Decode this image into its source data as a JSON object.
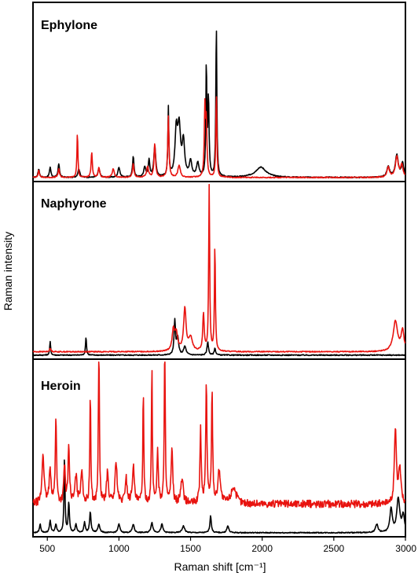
{
  "chart_data": {
    "type": "line",
    "xlabel": "Raman shift [cm⁻¹]",
    "ylabel": "Raman intensity",
    "xlim": [
      400,
      3000
    ],
    "xticks": [
      "500",
      "1000",
      "1500",
      "2000",
      "2500",
      "3000"
    ],
    "xtick_values": [
      500,
      1000,
      1500,
      2000,
      2500,
      3000
    ],
    "series_colors": [
      "#000000",
      "#e8130f"
    ],
    "grid": false,
    "panels": [
      {
        "title": "Ephylone",
        "ylim": [
          0,
          1
        ],
        "series": [
          {
            "color": "#000000",
            "baseline": 0.01,
            "peaks": [
              [
                440,
                0.05,
                6
              ],
              [
                520,
                0.06,
                6
              ],
              [
                580,
                0.08,
                6
              ],
              [
                720,
                0.05,
                8
              ],
              [
                860,
                0.05,
                8
              ],
              [
                1000,
                0.06,
                8
              ],
              [
                1100,
                0.12,
                6
              ],
              [
                1180,
                0.06,
                8
              ],
              [
                1210,
                0.1,
                6
              ],
              [
                1250,
                0.18,
                8
              ],
              [
                1345,
                0.4,
                4
              ],
              [
                1400,
                0.25,
                10
              ],
              [
                1420,
                0.28,
                12
              ],
              [
                1450,
                0.2,
                10
              ],
              [
                1500,
                0.09,
                10
              ],
              [
                1550,
                0.08,
                10
              ],
              [
                1610,
                0.65,
                4
              ],
              [
                1625,
                0.45,
                5
              ],
              [
                1680,
                0.9,
                4
              ],
              [
                1990,
                0.06,
                45
              ],
              [
                2880,
                0.06,
                12
              ],
              [
                2940,
                0.13,
                12
              ],
              [
                2980,
                0.08,
                10
              ]
            ]
          },
          {
            "color": "#e8130f",
            "baseline": 0.01,
            "peaks": [
              [
                440,
                0.04,
                6
              ],
              [
                580,
                0.05,
                6
              ],
              [
                710,
                0.26,
                4
              ],
              [
                810,
                0.15,
                5
              ],
              [
                860,
                0.06,
                6
              ],
              [
                960,
                0.05,
                8
              ],
              [
                1100,
                0.08,
                6
              ],
              [
                1200,
                0.06,
                8
              ],
              [
                1250,
                0.2,
                6
              ],
              [
                1345,
                0.36,
                5
              ],
              [
                1420,
                0.07,
                10
              ],
              [
                1600,
                0.4,
                5
              ],
              [
                1610,
                0.3,
                5
              ],
              [
                1680,
                0.5,
                4
              ],
              [
                2880,
                0.06,
                10
              ],
              [
                2940,
                0.12,
                12
              ],
              [
                2975,
                0.07,
                10
              ]
            ]
          }
        ]
      },
      {
        "title": "Naphyrone",
        "ylim": [
          0,
          1
        ],
        "series": [
          {
            "color": "#000000",
            "baseline": 0.01,
            "peaks": [
              [
                520,
                0.08,
                4
              ],
              [
                770,
                0.11,
                4
              ],
              [
                1390,
                0.2,
                6
              ],
              [
                1410,
                0.1,
                8
              ],
              [
                1460,
                0.05,
                10
              ],
              [
                1620,
                0.08,
                6
              ],
              [
                1670,
                0.04,
                6
              ]
            ]
          },
          {
            "color": "#e8130f",
            "baseline": 0.03,
            "peaks": [
              [
                520,
                0.02,
                6
              ],
              [
                1380,
                0.12,
                10
              ],
              [
                1400,
                0.1,
                12
              ],
              [
                1460,
                0.25,
                10
              ],
              [
                1500,
                0.08,
                15
              ],
              [
                1590,
                0.22,
                6
              ],
              [
                1630,
                1.0,
                4
              ],
              [
                1670,
                0.63,
                4
              ],
              [
                2930,
                0.18,
                18
              ],
              [
                2980,
                0.12,
                12
              ]
            ]
          }
        ]
      },
      {
        "title": "Heroin",
        "ylim": [
          0,
          1
        ],
        "series": [
          {
            "color": "#000000",
            "baseline": 0.01,
            "peaks": [
              [
                450,
                0.05,
                6
              ],
              [
                520,
                0.07,
                6
              ],
              [
                560,
                0.05,
                6
              ],
              [
                620,
                0.45,
                4
              ],
              [
                650,
                0.18,
                5
              ],
              [
                700,
                0.05,
                6
              ],
              [
                760,
                0.06,
                6
              ],
              [
                800,
                0.12,
                6
              ],
              [
                860,
                0.05,
                8
              ],
              [
                1000,
                0.05,
                8
              ],
              [
                1100,
                0.05,
                8
              ],
              [
                1230,
                0.06,
                8
              ],
              [
                1300,
                0.05,
                8
              ],
              [
                1450,
                0.04,
                10
              ],
              [
                1640,
                0.1,
                6
              ],
              [
                1760,
                0.04,
                8
              ],
              [
                2800,
                0.05,
                10
              ],
              [
                2900,
                0.14,
                10
              ],
              [
                2950,
                0.2,
                12
              ],
              [
                2985,
                0.1,
                10
              ]
            ]
          },
          {
            "color": "#e8130f",
            "baseline": 0.18,
            "peaks": [
              [
                470,
                0.3,
                8
              ],
              [
                520,
                0.2,
                8
              ],
              [
                560,
                0.52,
                5
              ],
              [
                620,
                0.22,
                6
              ],
              [
                650,
                0.34,
                6
              ],
              [
                700,
                0.16,
                8
              ],
              [
                740,
                0.2,
                8
              ],
              [
                800,
                0.66,
                4
              ],
              [
                860,
                1.0,
                4
              ],
              [
                920,
                0.18,
                8
              ],
              [
                980,
                0.25,
                8
              ],
              [
                1050,
                0.15,
                8
              ],
              [
                1100,
                0.22,
                8
              ],
              [
                1170,
                0.68,
                4
              ],
              [
                1230,
                0.8,
                4
              ],
              [
                1270,
                0.3,
                6
              ],
              [
                1320,
                1.0,
                4
              ],
              [
                1370,
                0.35,
                6
              ],
              [
                1440,
                0.15,
                10
              ],
              [
                1570,
                0.45,
                5
              ],
              [
                1610,
                0.72,
                5
              ],
              [
                1650,
                0.65,
                5
              ],
              [
                1700,
                0.2,
                10
              ],
              [
                1800,
                0.1,
                20
              ],
              [
                2930,
                0.45,
                8
              ],
              [
                2960,
                0.2,
                10
              ]
            ]
          }
        ]
      }
    ]
  }
}
